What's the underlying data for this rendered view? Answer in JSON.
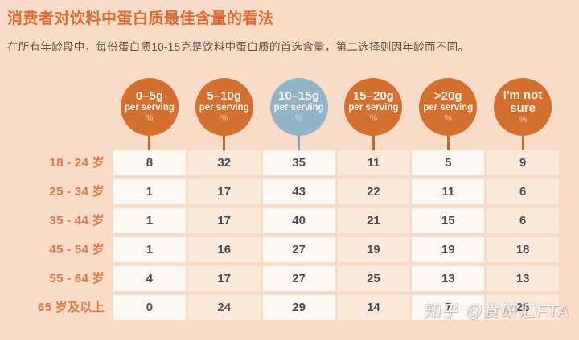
{
  "page": {
    "background": "#f8dcc8"
  },
  "header": {
    "title": "消费者对饮料中蛋白质最佳含量的看法",
    "subtitle": "在所有年龄段中，每份蛋白质10-15克是饮料中蛋白质的首选含量，第二选择则因年龄而不同。",
    "title_color": "#df6a33"
  },
  "columns": [
    {
      "label": "0–5g",
      "sublabel": "per serving",
      "pct": "%",
      "highlighted": false
    },
    {
      "label": "5–10g",
      "sublabel": "per serving",
      "pct": "%",
      "highlighted": false
    },
    {
      "label": "10–15g",
      "sublabel": "per serving",
      "pct": "%",
      "highlighted": true
    },
    {
      "label": "15–20g",
      "sublabel": "per serving",
      "pct": "%",
      "highlighted": false
    },
    {
      "label": ">20g",
      "sublabel": "per serving",
      "pct": "%",
      "highlighted": false
    },
    {
      "label": "I'm not sure",
      "sublabel": "",
      "pct": "%",
      "highlighted": false
    }
  ],
  "colors": {
    "circle_orange": "#d4702f",
    "circle_blue": "#91b4c7",
    "cell_white": "#fdf9f4",
    "cell_pink": "#fbe9da",
    "label_orange": "#dd7847"
  },
  "table": {
    "rows": [
      {
        "label": "18 - 24 岁",
        "values": [
          8,
          32,
          35,
          11,
          5,
          9
        ]
      },
      {
        "label": "25 - 34 岁",
        "values": [
          1,
          17,
          43,
          22,
          11,
          6
        ]
      },
      {
        "label": "35 - 44 岁",
        "values": [
          1,
          17,
          40,
          21,
          15,
          6
        ]
      },
      {
        "label": "45 - 54 岁",
        "values": [
          1,
          16,
          27,
          19,
          19,
          18
        ]
      },
      {
        "label": "55 - 64 岁",
        "values": [
          4,
          17,
          27,
          25,
          13,
          13
        ]
      },
      {
        "label": "65 岁及以上",
        "values": [
          0,
          24,
          29,
          14,
          7,
          26
        ]
      }
    ]
  },
  "watermark": {
    "text": "知乎 @食研汇FTA"
  },
  "chart_data": {
    "type": "table",
    "title": "消费者对饮料中蛋白质最佳含量的看法",
    "subtitle": "在所有年龄段中，每份蛋白质10-15克是饮料中蛋白质的首选含量，第二选择则因年龄而不同。",
    "categories": [
      "18 - 24 岁",
      "25 - 34 岁",
      "35 - 44 岁",
      "45 - 54 岁",
      "55 - 64 岁",
      "65 岁及以上"
    ],
    "columns": [
      "0–5g per serving %",
      "5–10g per serving %",
      "10–15g per serving %",
      "15–20g per serving %",
      ">20g per serving %",
      "I'm not sure %"
    ],
    "series": [
      {
        "name": "0–5g per serving %",
        "values": [
          8,
          1,
          1,
          1,
          4,
          0
        ]
      },
      {
        "name": "5–10g per serving %",
        "values": [
          32,
          17,
          17,
          16,
          17,
          24
        ]
      },
      {
        "name": "10–15g per serving %",
        "values": [
          35,
          43,
          40,
          27,
          27,
          29
        ]
      },
      {
        "name": "15–20g per serving %",
        "values": [
          11,
          22,
          21,
          19,
          25,
          14
        ]
      },
      {
        "name": ">20g per serving %",
        "values": [
          5,
          11,
          15,
          19,
          13,
          7
        ]
      },
      {
        "name": "I'm not sure %",
        "values": [
          9,
          6,
          6,
          18,
          13,
          26
        ]
      }
    ],
    "highlighted_column": "10–15g per serving %",
    "unit": "percent of consumers"
  }
}
